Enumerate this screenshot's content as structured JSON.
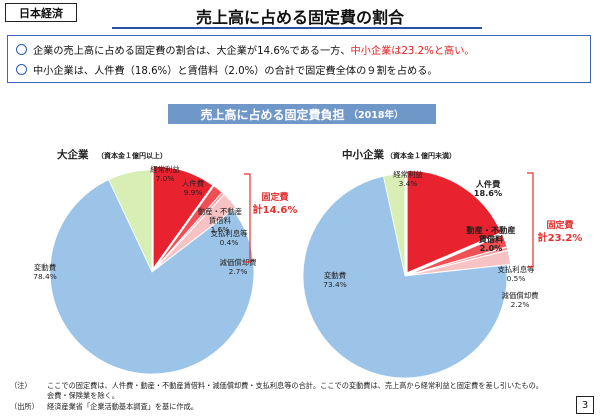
{
  "header": {
    "tag": "日本経済",
    "title": "売上高に占める固定費の割合"
  },
  "bullets": [
    {
      "text_before": "企業の売上高に占める固定費の割合は、大企業が14.6%である一方、",
      "text_red": "中小企業は23.2%と高い。"
    },
    {
      "text_before": "中小企業は、人件費（18.6%）と賃借料（2.0%）の合計で固定費全体の９割を占める。",
      "text_red": ""
    }
  ],
  "banner": {
    "title": "売上高に占める固定費負担",
    "year": "（2018年）"
  },
  "colors": {
    "variable": "#9cc4e8",
    "profit": "#d8eeb4",
    "labor": "#e8222e",
    "rent": "#ef4f55",
    "interest": "#f39ca0",
    "depreciation": "#f6c2c4",
    "accent": "#e53030"
  },
  "chart_data": [
    {
      "type": "pie",
      "title": "大企業",
      "subtitle": "（資本金１億円以上）",
      "slices": [
        {
          "label": "経常利益",
          "value": 7.0,
          "value_text": "7.0%",
          "color_key": "profit"
        },
        {
          "label": "人件費",
          "value": 9.9,
          "value_text": "9.9%",
          "color_key": "labor"
        },
        {
          "label": "動産・不動産賃借料",
          "value": 1.6,
          "value_text": "1.6%",
          "color_key": "rent"
        },
        {
          "label": "支払利息等",
          "value": 0.4,
          "value_text": "0.4%",
          "color_key": "interest"
        },
        {
          "label": "減価償却費",
          "value": 2.7,
          "value_text": "2.7%",
          "color_key": "depreciation"
        },
        {
          "label": "変動費",
          "value": 78.4,
          "value_text": "78.4%",
          "color_key": "variable"
        }
      ],
      "fixed_cost_label": "固定費",
      "fixed_cost_total": "計14.6%"
    },
    {
      "type": "pie",
      "title": "中小企業",
      "subtitle": "（資本金１億円未満）",
      "slices": [
        {
          "label": "経常利益",
          "value": 3.4,
          "value_text": "3.4%",
          "color_key": "profit"
        },
        {
          "label": "人件費",
          "value": 18.6,
          "value_text": "18.6%",
          "color_key": "labor"
        },
        {
          "label": "動産・不動産賃借料",
          "value": 2.0,
          "value_text": "2.0%",
          "color_key": "rent"
        },
        {
          "label": "支払利息等",
          "value": 0.5,
          "value_text": "0.5%",
          "color_key": "interest"
        },
        {
          "label": "減価償却費",
          "value": 2.2,
          "value_text": "2.2%",
          "color_key": "depreciation"
        },
        {
          "label": "変動費",
          "value": 73.4,
          "value_text": "73.4%",
          "color_key": "variable"
        }
      ],
      "fixed_cost_label": "固定費",
      "fixed_cost_total": "計23.2%"
    }
  ],
  "notes": {
    "note_label": "（注）",
    "note_line1": "ここでの固定費は、人件費・動産・不動産賃借料・減価償却費・支払利息等の合計。ここでの変動費は、売上高から経常利益と固定費を差し引いたもの。",
    "note_line2": "会費・保険業を除く。",
    "source_label": "（出所）",
    "source_text": "経済産業省「企業活動基本調査」を基に作成。"
  },
  "page_number": "3"
}
